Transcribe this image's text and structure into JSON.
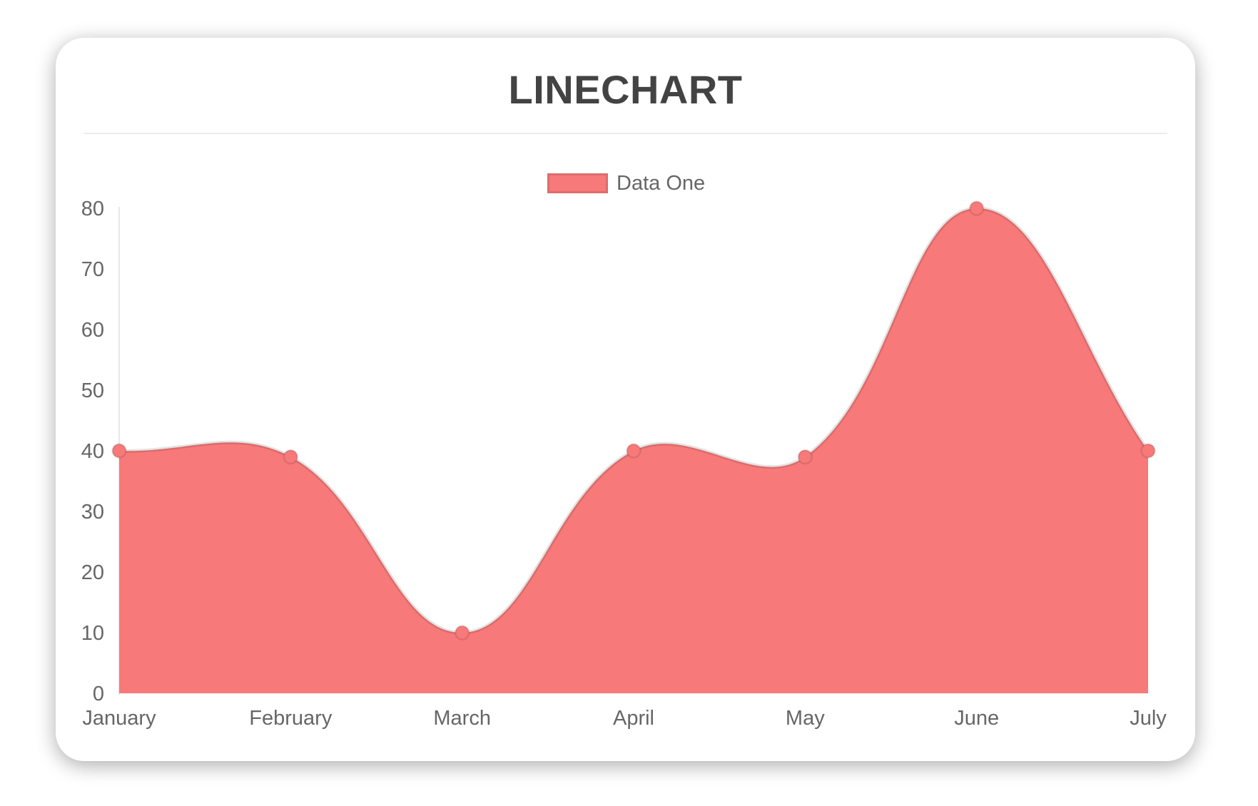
{
  "chart_data": {
    "type": "area",
    "title": "LINECHART",
    "categories": [
      "January",
      "February",
      "March",
      "April",
      "May",
      "June",
      "July"
    ],
    "series": [
      {
        "name": "Data One",
        "values": [
          40,
          39,
          10,
          40,
          39,
          80,
          40
        ]
      }
    ],
    "xlabel": "",
    "ylabel": "",
    "ylim": [
      0,
      80
    ],
    "y_ticks": [
      0,
      10,
      20,
      30,
      40,
      50,
      60,
      70,
      80
    ],
    "grid": false,
    "legend_position": "top-center",
    "line_tension": 0.4,
    "colors": {
      "fill": "#f87979",
      "point_fill": "#f87979",
      "line_border": "rgba(0,0,0,0.11)",
      "point_border": "rgba(0,0,0,0.10)",
      "axis_line": "rgba(0,0,0,0.09)",
      "tick_text": "#666666",
      "legend_text": "#666666",
      "title_text": "#434343",
      "divider": "#ececec",
      "card_background": "#ffffff"
    }
  }
}
